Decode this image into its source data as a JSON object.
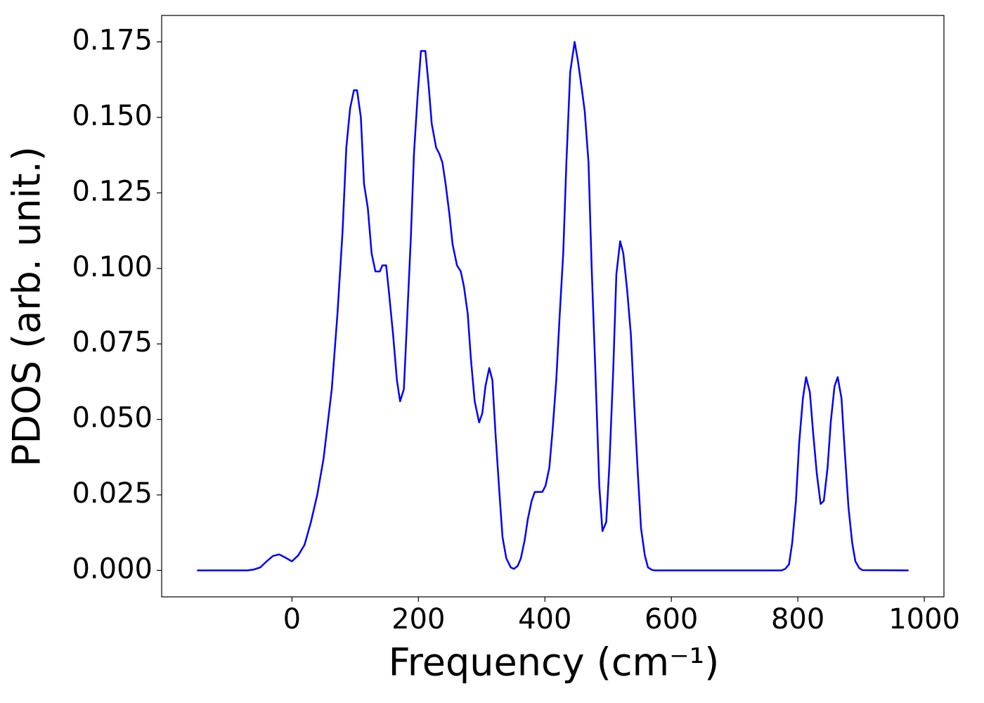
{
  "chart_data": {
    "type": "line",
    "xlabel": "Frequency (cm⁻¹)",
    "ylabel": "PDOS (arb. unit.)",
    "color": "#0000ff",
    "x": [
      -150,
      -100,
      -70,
      -60,
      -50,
      -40,
      -30,
      -20,
      -10,
      0,
      10,
      20,
      30,
      40,
      50,
      63,
      72,
      80,
      86,
      92,
      98,
      103,
      109,
      114,
      120,
      126,
      132,
      139,
      143,
      149,
      153,
      160,
      166,
      171,
      177,
      181,
      188,
      193,
      199,
      204,
      211,
      216,
      221,
      228,
      233,
      238,
      243,
      249,
      254,
      261,
      267,
      272,
      278,
      283,
      289,
      296,
      301,
      306,
      312,
      317,
      322,
      328,
      333,
      339,
      346,
      351,
      357,
      362,
      368,
      373,
      379,
      384,
      390,
      396,
      401,
      407,
      412,
      418,
      423,
      429,
      434,
      440,
      447,
      452,
      458,
      463,
      469,
      474,
      480,
      486,
      491,
      497,
      502,
      508,
      513,
      519,
      524,
      530,
      536,
      541,
      547,
      552,
      558,
      563,
      569,
      574,
      700,
      774,
      780,
      786,
      791,
      797,
      802,
      808,
      813,
      819,
      824,
      830,
      836,
      841,
      847,
      852,
      858,
      863,
      869,
      874,
      880,
      886,
      891,
      897,
      902,
      975
    ],
    "values": [
      0,
      0,
      0,
      0.0003,
      0.001,
      0.003,
      0.0048,
      0.0053,
      0.0042,
      0.003,
      0.005,
      0.0085,
      0.016,
      0.025,
      0.037,
      0.06,
      0.085,
      0.112,
      0.14,
      0.153,
      0.159,
      0.159,
      0.15,
      0.128,
      0.12,
      0.105,
      0.099,
      0.099,
      0.101,
      0.101,
      0.093,
      0.078,
      0.063,
      0.056,
      0.06,
      0.078,
      0.11,
      0.138,
      0.158,
      0.172,
      0.172,
      0.161,
      0.148,
      0.14,
      0.138,
      0.135,
      0.128,
      0.118,
      0.108,
      0.101,
      0.099,
      0.094,
      0.085,
      0.07,
      0.056,
      0.049,
      0.052,
      0.061,
      0.067,
      0.063,
      0.045,
      0.026,
      0.011,
      0.004,
      0.001,
      0.0005,
      0.0015,
      0.004,
      0.01,
      0.017,
      0.023,
      0.026,
      0.026,
      0.026,
      0.028,
      0.034,
      0.046,
      0.063,
      0.083,
      0.105,
      0.135,
      0.165,
      0.175,
      0.169,
      0.16,
      0.152,
      0.135,
      0.1,
      0.065,
      0.028,
      0.013,
      0.016,
      0.035,
      0.066,
      0.098,
      0.109,
      0.105,
      0.093,
      0.078,
      0.056,
      0.032,
      0.014,
      0.005,
      0.001,
      0.0002,
      0,
      0,
      0,
      0.0005,
      0.002,
      0.009,
      0.023,
      0.042,
      0.057,
      0.064,
      0.059,
      0.046,
      0.032,
      0.022,
      0.023,
      0.034,
      0.049,
      0.061,
      0.064,
      0.057,
      0.04,
      0.021,
      0.009,
      0.003,
      0.0008,
      0.0001,
      0
    ],
    "xlim": [
      -206,
      1031
    ],
    "ylim": [
      -0.00875,
      0.18375
    ],
    "xticks": [
      0,
      200,
      400,
      600,
      800,
      1000
    ],
    "yticks": [
      {
        "value": 0,
        "label": "0.000"
      },
      {
        "value": 0.025,
        "label": "0.025"
      },
      {
        "value": 0.05,
        "label": "0.050"
      },
      {
        "value": 0.075,
        "label": "0.075"
      },
      {
        "value": 0.1,
        "label": "0.100"
      },
      {
        "value": 0.125,
        "label": "0.125"
      },
      {
        "value": 0.15,
        "label": "0.150"
      },
      {
        "value": 0.175,
        "label": "0.175"
      }
    ],
    "grid": false
  }
}
